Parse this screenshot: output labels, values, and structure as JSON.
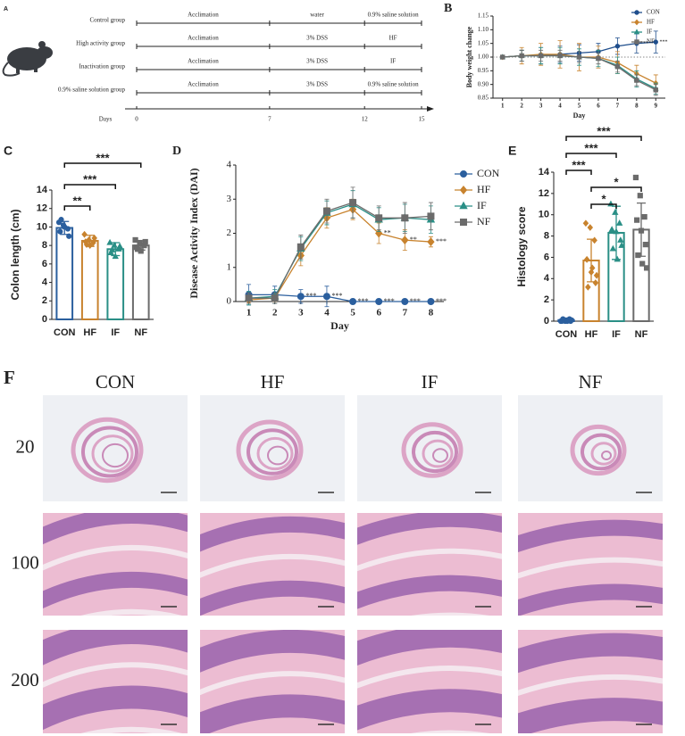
{
  "panel_a": {
    "label": "A",
    "groups": [
      {
        "name": "Control group",
        "phases": [
          "Acclimation",
          "water",
          "0.9% saline solution"
        ]
      },
      {
        "name": "High activity group",
        "phases": [
          "Acclimation",
          "3% DSS",
          "HF"
        ]
      },
      {
        "name": "Inactivation group",
        "phases": [
          "Acclimation",
          "3% DSS",
          "IF"
        ]
      },
      {
        "name": "0.9% saline solution group",
        "phases": [
          "Acclimation",
          "3% DSS",
          "0.9% saline solution"
        ]
      }
    ],
    "axis_label": "Days",
    "days": [
      0,
      7,
      12,
      15
    ]
  },
  "chart_data": [
    {
      "panel": "B",
      "type": "line",
      "x_label": "Day",
      "y_label": "Body weight change",
      "x": [
        1,
        2,
        3,
        4,
        5,
        6,
        7,
        8,
        9
      ],
      "xlim": [
        0.5,
        9.5
      ],
      "xticks": [
        1,
        2,
        3,
        4,
        5,
        6,
        7,
        8,
        9
      ],
      "ylim": [
        0.85,
        1.15
      ],
      "yticks": [
        0.85,
        {
          "value": 0.9,
          "label": "0.90"
        },
        0.95,
        {
          "value": 1,
          "label": "1.00"
        },
        1.05,
        {
          "value": 1.1,
          "label": "1.10"
        },
        1.15
      ],
      "hline": 1,
      "legend": "upper right",
      "series": [
        {
          "name": "CON",
          "color": "#1f4e8c",
          "marker": "circle",
          "values": [
            1.0,
            1.005,
            1.005,
            1.01,
            1.015,
            1.02,
            1.04,
            1.05,
            1.055
          ],
          "errors": [
            0,
            0.02,
            0.03,
            0.03,
            0.03,
            0.03,
            0.03,
            0.035,
            0.04
          ],
          "point_labels": [
            null,
            null,
            null,
            null,
            null,
            null,
            null,
            "***",
            "***"
          ]
        },
        {
          "name": "HF",
          "color": "#c8832e",
          "marker": "diamond",
          "values": [
            1.0,
            1.005,
            1.01,
            1.01,
            1.0,
            1.0,
            0.98,
            0.94,
            0.905
          ],
          "errors": [
            0,
            0.03,
            0.04,
            0.05,
            0.05,
            0.04,
            0.04,
            0.03,
            0.03
          ]
        },
        {
          "name": "IF",
          "color": "#2a8f86",
          "marker": "triangle",
          "values": [
            1.0,
            1.005,
            1.005,
            1.005,
            1.0,
            0.995,
            0.97,
            0.92,
            0.885
          ],
          "errors": [
            0,
            0.02,
            0.03,
            0.03,
            0.03,
            0.03,
            0.03,
            0.03,
            0.02
          ]
        },
        {
          "name": "NF",
          "color": "#6b6b6b",
          "marker": "square",
          "values": [
            1.0,
            1.005,
            1.005,
            1.005,
            1.0,
            0.995,
            0.965,
            0.915,
            0.88
          ],
          "errors": [
            0,
            0.02,
            0.02,
            0.02,
            0.02,
            0.02,
            0.02,
            0.02,
            0.02
          ]
        }
      ]
    },
    {
      "panel": "C",
      "type": "bar",
      "y_label": "Colon length (cm)",
      "categories": [
        "CON",
        "HF",
        "IF",
        "NF"
      ],
      "values": [
        9.9,
        8.5,
        7.6,
        8.0
      ],
      "errors": [
        0.7,
        0.6,
        0.7,
        0.5
      ],
      "colors": [
        "#2b5f9e",
        "#c8832e",
        "#2a8f86",
        "#6b6b6b"
      ],
      "markers": [
        "circle",
        "diamond",
        "triangle",
        "square"
      ],
      "points": [
        [
          10.5,
          10.2,
          9.8,
          9.5,
          10.0,
          9.0,
          10.8
        ],
        [
          9.2,
          8.6,
          8.3,
          8.4,
          8.0,
          8.8,
          8.1
        ],
        [
          8.3,
          8.0,
          7.6,
          7.2,
          6.8,
          7.9,
          7.5
        ],
        [
          8.6,
          8.3,
          8.0,
          7.8,
          7.4,
          8.4,
          7.6
        ]
      ],
      "ylim": [
        0,
        14
      ],
      "yticks": [
        0,
        2,
        4,
        6,
        8,
        10,
        12,
        14
      ],
      "significance": [
        {
          "between": [
            "CON",
            "HF"
          ],
          "label": "**"
        },
        {
          "between": [
            "CON",
            "IF"
          ],
          "label": "***"
        },
        {
          "between": [
            "CON",
            "NF"
          ],
          "label": "***"
        }
      ]
    },
    {
      "panel": "D",
      "type": "line",
      "x_label": "Day",
      "y_label": "Disease Activity Index (DAI)",
      "x": [
        1,
        2,
        3,
        4,
        5,
        6,
        7,
        8
      ],
      "xlim": [
        0.5,
        8.5
      ],
      "xticks": [
        1,
        2,
        3,
        4,
        5,
        6,
        7,
        8
      ],
      "ylim": [
        0,
        4
      ],
      "yticks": [
        0,
        1,
        2,
        3,
        4
      ],
      "legend": "right",
      "series": [
        {
          "name": "CON",
          "color": "#2b5f9e",
          "marker": "circle",
          "values": [
            0.2,
            0.2,
            0.15,
            0.15,
            0,
            0,
            0,
            0
          ],
          "errors": [
            0.3,
            0.25,
            0.2,
            0.3,
            0,
            0,
            0,
            0
          ],
          "point_labels": [
            null,
            null,
            "***",
            "***",
            "***",
            "***",
            "***",
            "***"
          ]
        },
        {
          "name": "HF",
          "color": "#c8832e",
          "marker": "diamond",
          "values": [
            0.05,
            0.1,
            1.35,
            2.45,
            2.7,
            2.0,
            1.8,
            1.75
          ],
          "errors": [
            0.1,
            0.1,
            0.3,
            0.3,
            0.3,
            0.3,
            0.3,
            0.15
          ],
          "point_labels": [
            null,
            null,
            null,
            null,
            null,
            "**",
            "**",
            "***"
          ]
        },
        {
          "name": "IF",
          "color": "#2a8f86",
          "marker": "triangle",
          "values": [
            0.1,
            0.15,
            1.55,
            2.6,
            2.85,
            2.4,
            2.45,
            2.4
          ],
          "errors": [
            0.2,
            0.2,
            0.35,
            0.35,
            0.4,
            0.35,
            0.4,
            0.4
          ]
        },
        {
          "name": "NF",
          "color": "#6b6b6b",
          "marker": "square",
          "values": [
            0.1,
            0.1,
            1.6,
            2.65,
            2.9,
            2.45,
            2.45,
            2.5
          ],
          "errors": [
            0.15,
            0.15,
            0.35,
            0.35,
            0.45,
            0.35,
            0.45,
            0.4
          ]
        }
      ]
    },
    {
      "panel": "E",
      "type": "bar",
      "y_label": "Histology score",
      "categories": [
        "CON",
        "HF",
        "IF",
        "NF"
      ],
      "values": [
        0.1,
        5.7,
        8.3,
        8.6
      ],
      "errors": [
        0.1,
        2.0,
        2.5,
        2.5
      ],
      "colors": [
        "#2b5f9e",
        "#c8832e",
        "#2a8f86",
        "#6b6b6b"
      ],
      "markers": [
        "circle",
        "diamond",
        "triangle",
        "square"
      ],
      "points": [
        [
          0,
          0,
          0.2,
          0,
          0.1,
          0,
          0.2,
          0,
          0.1
        ],
        [
          9.2,
          8.8,
          7.6,
          5.8,
          4.6,
          3.6,
          3.2,
          5.0,
          4.3
        ],
        [
          11.0,
          10.2,
          9.2,
          8.6,
          8.4,
          7.6,
          6.8,
          5.8,
          7.1
        ],
        [
          13.5,
          11.8,
          9.8,
          9.5,
          8.5,
          7.2,
          6.2,
          5.4,
          5.0
        ]
      ],
      "ylim": [
        0,
        14
      ],
      "yticks": [
        0,
        2,
        4,
        6,
        8,
        10,
        12,
        14
      ],
      "significance": [
        {
          "between": [
            "HF",
            "IF"
          ],
          "label": "*"
        },
        {
          "between": [
            "HF",
            "NF"
          ],
          "label": "*"
        },
        {
          "between": [
            "CON",
            "HF"
          ],
          "label": "***"
        },
        {
          "between": [
            "CON",
            "IF"
          ],
          "label": "***"
        },
        {
          "between": [
            "CON",
            "NF"
          ],
          "label": "***"
        }
      ]
    }
  ],
  "panel_f": {
    "label": "F",
    "columns": [
      "CON",
      "HF",
      "IF",
      "NF"
    ],
    "rows": [
      "20",
      "100",
      "200"
    ]
  }
}
